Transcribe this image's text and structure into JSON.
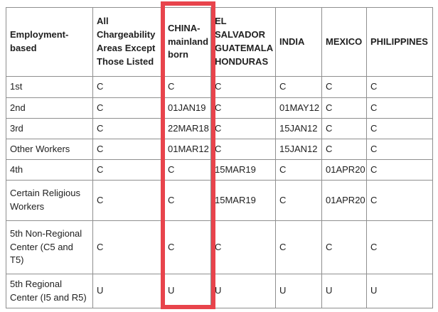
{
  "table": {
    "columns": [
      {
        "label": "Employment-based"
      },
      {
        "label": "All Chargeability Areas Except Those Listed"
      },
      {
        "label": "CHINA-mainland born",
        "highlighted": true
      },
      {
        "label": "EL SALVADOR GUATEMALA HONDURAS"
      },
      {
        "label": "INDIA"
      },
      {
        "label": "MEXICO"
      },
      {
        "label": "PHILIPPINES"
      }
    ],
    "rows": [
      {
        "label": "1st",
        "values": [
          "C",
          "C",
          "C",
          "C",
          "C",
          "C"
        ]
      },
      {
        "label": "2nd",
        "values": [
          "C",
          "01JAN19",
          "C",
          "01MAY12",
          "C",
          "C"
        ]
      },
      {
        "label": "3rd",
        "values": [
          "C",
          "22MAR18",
          "C",
          "15JAN12",
          "C",
          "C"
        ]
      },
      {
        "label": "Other Workers",
        "values": [
          "C",
          "01MAR12",
          "C",
          "15JAN12",
          "C",
          "C"
        ]
      },
      {
        "label": "4th",
        "values": [
          "C",
          "C",
          "15MAR19",
          "C",
          "01APR20",
          "C"
        ]
      },
      {
        "label": "Certain Religious Workers",
        "values": [
          "C",
          "C",
          "15MAR19",
          "C",
          "01APR20",
          "C"
        ]
      },
      {
        "label": "5th Non-Regional Center (C5 and T5)",
        "values": [
          "C",
          "C",
          "C",
          "C",
          "C",
          "C"
        ]
      },
      {
        "label": "5th Regional Center (I5 and R5)",
        "values": [
          "U",
          "U",
          "U",
          "U",
          "U",
          "U"
        ]
      }
    ]
  },
  "highlight": {
    "highlighted_column": "CHINA-mainland born",
    "color": "#e8444c"
  },
  "colors": {
    "border": "#8f8f8f",
    "text": "#212121",
    "background": "#ffffff"
  }
}
